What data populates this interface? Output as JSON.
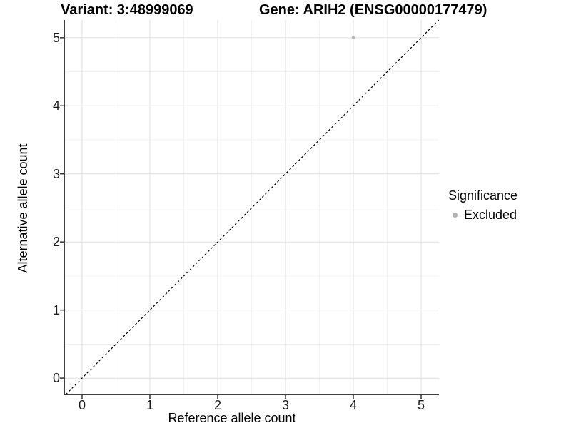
{
  "titles": {
    "variant": "Variant: 3:48999069",
    "gene": "Gene: ARIH2 (ENSG00000177479)"
  },
  "axes": {
    "x_label": "Reference allele count",
    "y_label": "Alternative allele count"
  },
  "legend": {
    "title": "Significance",
    "items": [
      {
        "label": "Excluded",
        "color": "#b0b0b0"
      }
    ]
  },
  "colors": {
    "background": "#ffffff",
    "grid_major": "#e4e4e4",
    "grid_minor": "#f1f1f1",
    "axis_line": "#3f3f3f",
    "tick_mark": "#333333",
    "reference_line": "#000000"
  },
  "chart_data": {
    "type": "scatter",
    "title": "Variant: 3:48999069    |    Gene: ARIH2 (ENSG00000177479)",
    "xlabel": "Reference allele count",
    "ylabel": "Alternative allele count",
    "x_ticks": [
      0,
      1,
      2,
      3,
      4,
      5
    ],
    "y_ticks": [
      0,
      1,
      2,
      3,
      4,
      5
    ],
    "xlim": [
      -0.263,
      5.263
    ],
    "ylim": [
      -0.24,
      5.26
    ],
    "grid": "major at integers, minor at half-integers",
    "legend_position": "right",
    "reference_line": {
      "type": "identity y = x",
      "style": "dashed",
      "color": "#000000"
    },
    "series": [
      {
        "name": "Excluded",
        "color": "#b8b8b8",
        "points": [
          {
            "x": 4,
            "y": 5
          }
        ]
      }
    ]
  }
}
